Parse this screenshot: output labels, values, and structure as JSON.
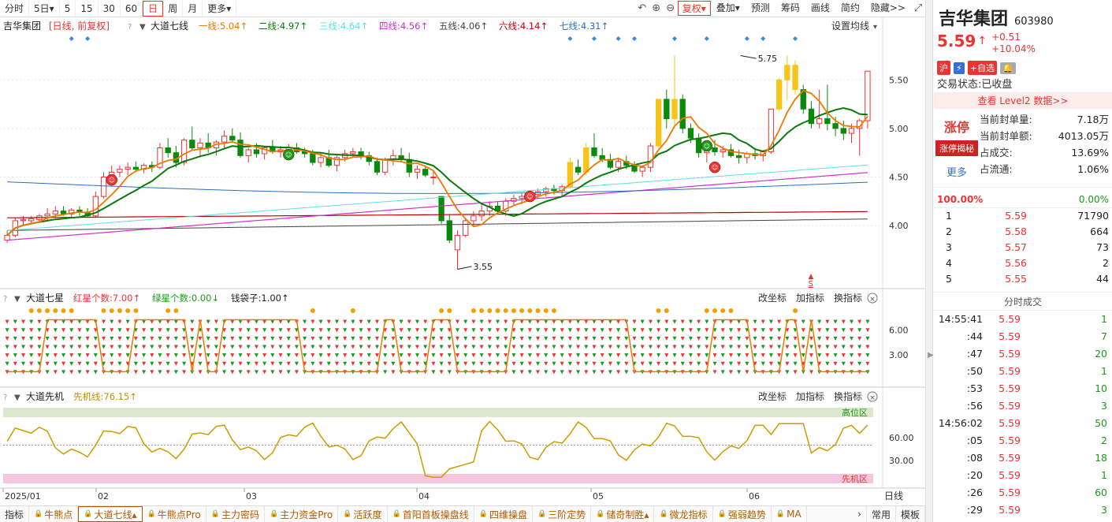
{
  "toolbar": {
    "periods": [
      "分时",
      "5日▾",
      "5",
      "15",
      "30",
      "60",
      "日",
      "周",
      "月",
      "更多▾"
    ],
    "active_period": "日",
    "right_items": [
      "复权▾",
      "叠加▾",
      "预测",
      "筹码",
      "画线",
      "简约",
      "隐藏>>"
    ]
  },
  "main_legend": {
    "stock": "吉华集团",
    "period_tag": "[日线, 前复权]",
    "indicator": "大道七线",
    "lines": [
      {
        "label": "一线:5.04↑",
        "color": "#f07800"
      },
      {
        "label": "二线:4.97↑",
        "color": "#0a7a0a"
      },
      {
        "label": "三线:4.64↑",
        "color": "#5ee0e0"
      },
      {
        "label": "四线:4.56↑",
        "color": "#cc33cc"
      },
      {
        "label": "五线:4.06↑",
        "color": "#444444"
      },
      {
        "label": "六线:4.14↑",
        "color": "#c00000"
      },
      {
        "label": "七线:4.31↑",
        "color": "#2a70c0"
      }
    ],
    "setting": "设置均线"
  },
  "main_axis": {
    "ticks": [
      "5.50",
      "5.00",
      "4.50",
      "4.00"
    ]
  },
  "annotations": {
    "high": "5.75",
    "low": "3.55",
    "s_mark": "S"
  },
  "panel2": {
    "name": "大道七星",
    "items": [
      {
        "label": "红星个数:7.00↑",
        "color": "#e33"
      },
      {
        "label": "绿星个数:0.00↓",
        "color": "#1a9a1a"
      },
      {
        "label": "钱袋子:1.00↑",
        "color": "#222"
      }
    ],
    "actions": [
      "改坐标",
      "加指标",
      "换指标"
    ],
    "ticks": [
      "6.00",
      "3.00"
    ]
  },
  "panel3": {
    "name": "大道先机",
    "items": [
      {
        "label": "先机线:76.15↑",
        "color": "#c09000"
      }
    ],
    "actions": [
      "改坐标",
      "加指标",
      "换指标"
    ],
    "ticks": [
      "60.00",
      "30.00"
    ],
    "high_zone": "高位区",
    "low_zone": "先机区"
  },
  "x_axis": {
    "labels": [
      "2025/01",
      "02",
      "03",
      "04",
      "05",
      "06"
    ],
    "tag": "日线"
  },
  "bottom_tabs": {
    "first": "指标",
    "tabs": [
      "牛熊点",
      "大道七线▴",
      "牛熊点Pro",
      "主力密码",
      "主力资金Pro",
      "活跃度",
      "首阳首板操盘线",
      "四维操盘",
      "三阶定势",
      "储奇制胜▴",
      "微龙指标",
      "强弱趋势",
      "MA"
    ],
    "active": "大道七线▴",
    "right": [
      "常用",
      "模板"
    ]
  },
  "stock": {
    "name": "吉华集团",
    "code": "603980",
    "price": "5.59",
    "change": "+0.51",
    "change_pct": "+10.04%",
    "badges": [
      "沪",
      "⚡",
      "+自选"
    ],
    "status_label": "交易状态:",
    "status": "已收盘",
    "level2": "查看 Level2 数据>>"
  },
  "seal": {
    "zt": "涨停",
    "zt_btn": "涨停揭秘",
    "more": "更多",
    "rows": [
      {
        "k": "当前封单量:",
        "v": "7.18万"
      },
      {
        "k": "当前封单额:",
        "v": "4013.05万"
      },
      {
        "k": "占成交:",
        "v": "13.69%"
      },
      {
        "k": "占流通:",
        "v": "1.06%"
      }
    ]
  },
  "ratio": {
    "left": "100.00%",
    "right": "0.00%"
  },
  "orderbook": [
    {
      "lv": "1",
      "p": "5.59",
      "q": "71790"
    },
    {
      "lv": "2",
      "p": "5.58",
      "q": "664"
    },
    {
      "lv": "3",
      "p": "5.57",
      "q": "73"
    },
    {
      "lv": "4",
      "p": "5.56",
      "q": "2"
    },
    {
      "lv": "5",
      "p": "5.55",
      "q": "44"
    }
  ],
  "ticks_title": "分时成交",
  "ticks": [
    {
      "t": "14:55:41",
      "p": "5.59",
      "v": "1",
      "g": true
    },
    {
      "t": ":44",
      "p": "5.59",
      "v": "7",
      "g": true
    },
    {
      "t": ":47",
      "p": "5.59",
      "v": "20",
      "g": true
    },
    {
      "t": ":50",
      "p": "5.59",
      "v": "1",
      "g": true
    },
    {
      "t": ":53",
      "p": "5.59",
      "v": "10",
      "g": true
    },
    {
      "t": ":56",
      "p": "5.59",
      "v": "3",
      "g": true
    },
    {
      "t": "14:56:02",
      "p": "5.59",
      "v": "50",
      "g": true
    },
    {
      "t": ":05",
      "p": "5.59",
      "v": "2",
      "g": true
    },
    {
      "t": ":08",
      "p": "5.59",
      "v": "18",
      "g": true
    },
    {
      "t": ":20",
      "p": "5.59",
      "v": "1",
      "g": true
    },
    {
      "t": ":26",
      "p": "5.59",
      "v": "60",
      "g": true
    },
    {
      "t": ":29",
      "p": "5.59",
      "v": "3",
      "g": true
    }
  ],
  "chart_data": {
    "type": "candlestick",
    "price_range": [
      3.4,
      5.9
    ],
    "candles": [
      [
        3.85,
        3.95,
        3.82,
        3.9
      ],
      [
        3.9,
        4.08,
        3.88,
        4.05
      ],
      [
        4.05,
        4.1,
        4.0,
        4.06
      ],
      [
        4.05,
        4.1,
        4.02,
        4.07
      ],
      [
        4.06,
        4.12,
        4.03,
        4.1
      ],
      [
        4.1,
        4.18,
        4.05,
        4.12
      ],
      [
        4.12,
        4.2,
        4.08,
        4.15
      ],
      [
        4.15,
        4.2,
        4.1,
        4.12
      ],
      [
        4.12,
        4.18,
        4.08,
        4.16
      ],
      [
        4.16,
        4.2,
        4.1,
        4.14
      ],
      [
        4.14,
        4.18,
        4.08,
        4.1
      ],
      [
        4.1,
        4.35,
        4.08,
        4.3
      ],
      [
        4.3,
        4.55,
        4.28,
        4.5
      ],
      [
        4.5,
        4.62,
        4.45,
        4.55
      ],
      [
        4.55,
        4.62,
        4.5,
        4.58
      ],
      [
        4.58,
        4.65,
        4.52,
        4.6
      ],
      [
        4.6,
        4.66,
        4.55,
        4.58
      ],
      [
        4.58,
        4.64,
        4.54,
        4.62
      ],
      [
        4.62,
        4.66,
        4.55,
        4.6
      ],
      [
        4.6,
        4.85,
        4.58,
        4.8
      ],
      [
        4.8,
        4.9,
        4.7,
        4.75
      ],
      [
        4.75,
        4.82,
        4.6,
        4.65
      ],
      [
        4.65,
        4.9,
        4.62,
        4.88
      ],
      [
        4.88,
        5.02,
        4.78,
        4.8
      ],
      [
        4.8,
        4.9,
        4.7,
        4.85
      ],
      [
        4.85,
        4.95,
        4.75,
        4.8
      ],
      [
        4.8,
        4.88,
        4.72,
        4.86
      ],
      [
        4.86,
        4.98,
        4.8,
        4.92
      ],
      [
        4.92,
        5.0,
        4.85,
        4.88
      ],
      [
        4.88,
        4.96,
        4.7,
        4.72
      ],
      [
        4.72,
        4.8,
        4.65,
        4.78
      ],
      [
        4.78,
        4.85,
        4.7,
        4.74
      ],
      [
        4.74,
        4.82,
        4.68,
        4.8
      ],
      [
        4.8,
        4.88,
        4.74,
        4.76
      ],
      [
        4.76,
        4.82,
        4.7,
        4.78
      ],
      [
        4.78,
        4.84,
        4.72,
        4.8
      ],
      [
        4.8,
        4.85,
        4.74,
        4.76
      ],
      [
        4.76,
        4.8,
        4.7,
        4.74
      ],
      [
        4.74,
        4.78,
        4.62,
        4.65
      ],
      [
        4.65,
        4.75,
        4.6,
        4.7
      ],
      [
        4.7,
        4.78,
        4.6,
        4.62
      ],
      [
        4.62,
        4.72,
        4.56,
        4.7
      ],
      [
        4.7,
        4.78,
        4.66,
        4.74
      ],
      [
        4.74,
        4.8,
        4.7,
        4.76
      ],
      [
        4.76,
        4.8,
        4.68,
        4.72
      ],
      [
        4.72,
        4.76,
        4.62,
        4.66
      ],
      [
        4.66,
        4.7,
        4.52,
        4.55
      ],
      [
        4.55,
        4.7,
        4.52,
        4.68
      ],
      [
        4.68,
        4.78,
        4.62,
        4.72
      ],
      [
        4.72,
        4.8,
        4.65,
        4.68
      ],
      [
        4.68,
        4.75,
        4.5,
        4.55
      ],
      [
        4.55,
        4.62,
        4.48,
        4.58
      ],
      [
        4.58,
        4.62,
        4.5,
        4.52
      ],
      [
        4.5,
        4.56,
        4.42,
        4.5
      ],
      [
        4.3,
        4.3,
        4.02,
        4.05
      ],
      [
        4.05,
        4.12,
        3.82,
        3.85
      ],
      [
        3.75,
        3.95,
        3.55,
        3.9
      ],
      [
        3.9,
        4.08,
        3.88,
        4.05
      ],
      [
        4.05,
        4.15,
        4.0,
        4.1
      ],
      [
        4.1,
        4.22,
        4.05,
        4.15
      ],
      [
        4.15,
        4.25,
        4.1,
        4.2
      ],
      [
        4.2,
        4.25,
        4.12,
        4.15
      ],
      [
        4.15,
        4.28,
        4.1,
        4.25
      ],
      [
        4.25,
        4.32,
        4.2,
        4.28
      ],
      [
        4.28,
        4.33,
        4.22,
        4.3
      ],
      [
        4.3,
        4.36,
        4.25,
        4.32
      ],
      [
        4.32,
        4.38,
        4.28,
        4.35
      ],
      [
        4.35,
        4.4,
        4.3,
        4.38
      ],
      [
        4.38,
        4.42,
        4.32,
        4.36
      ],
      [
        4.36,
        4.42,
        4.3,
        4.4
      ],
      [
        4.4,
        4.7,
        4.38,
        4.65
      ],
      [
        4.6,
        4.68,
        4.52,
        4.55
      ],
      [
        4.55,
        4.85,
        4.52,
        4.8
      ],
      [
        4.8,
        4.95,
        4.7,
        4.72
      ],
      [
        4.72,
        4.8,
        4.65,
        4.68
      ],
      [
        4.68,
        4.74,
        4.58,
        4.6
      ],
      [
        4.6,
        4.7,
        4.55,
        4.66
      ],
      [
        4.66,
        4.72,
        4.58,
        4.62
      ],
      [
        4.62,
        4.66,
        4.54,
        4.56
      ],
      [
        4.56,
        4.62,
        4.5,
        4.6
      ],
      [
        4.6,
        4.85,
        4.55,
        4.82
      ],
      [
        4.82,
        5.3,
        4.8,
        5.3
      ],
      [
        5.3,
        5.4,
        5.0,
        5.1
      ],
      [
        5.1,
        5.75,
        5.0,
        5.3
      ],
      [
        5.3,
        5.35,
        4.95,
        5.0
      ],
      [
        5.0,
        5.05,
        4.85,
        4.9
      ],
      [
        4.9,
        4.95,
        4.7,
        4.75
      ],
      [
        4.75,
        4.82,
        4.65,
        4.8
      ],
      [
        4.8,
        4.88,
        4.72,
        4.76
      ],
      [
        4.76,
        4.82,
        4.7,
        4.78
      ],
      [
        4.78,
        4.84,
        4.7,
        4.72
      ],
      [
        4.72,
        4.78,
        4.64,
        4.7
      ],
      [
        4.7,
        4.76,
        4.64,
        4.74
      ],
      [
        4.74,
        4.8,
        4.68,
        4.72
      ],
      [
        4.72,
        4.78,
        4.66,
        4.76
      ],
      [
        4.76,
        5.2,
        4.74,
        5.2
      ],
      [
        5.2,
        5.52,
        5.18,
        5.5
      ],
      [
        5.5,
        5.75,
        5.3,
        5.65
      ],
      [
        5.65,
        5.7,
        5.35,
        5.4
      ],
      [
        5.4,
        5.45,
        5.15,
        5.2
      ],
      [
        5.2,
        5.28,
        5.0,
        5.05
      ],
      [
        5.05,
        5.4,
        5.0,
        5.1
      ],
      [
        5.1,
        5.45,
        4.98,
        5.05
      ],
      [
        5.05,
        5.12,
        4.92,
        5.0
      ],
      [
        5.0,
        5.08,
        4.88,
        4.95
      ],
      [
        4.95,
        5.05,
        4.85,
        5.0
      ],
      [
        5.0,
        5.1,
        4.72,
        5.08
      ],
      [
        5.08,
        5.59,
        5.0,
        5.59
      ]
    ]
  }
}
